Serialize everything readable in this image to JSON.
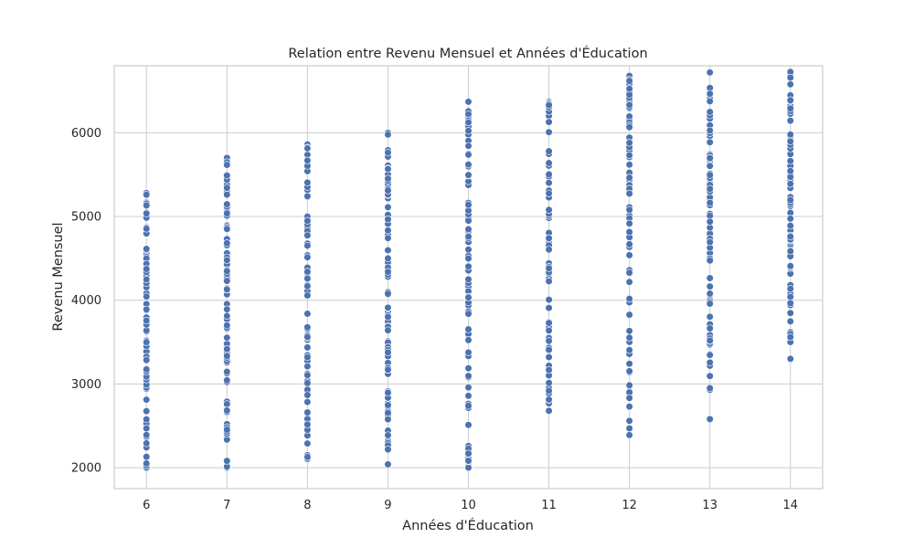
{
  "chart_data": {
    "type": "scatter",
    "title": "Relation entre Revenu Mensuel et Années d'Éducation",
    "xlabel": "Années d'Éducation",
    "ylabel": "Revenu Mensuel",
    "xlim": [
      5.6,
      14.4
    ],
    "ylim": [
      1750,
      6800
    ],
    "x_ticks": [
      6,
      7,
      8,
      9,
      10,
      11,
      12,
      13,
      14
    ],
    "y_ticks": [
      2000,
      3000,
      4000,
      5000,
      6000
    ],
    "grid": true,
    "point_color": "#4c72b0",
    "columns": [
      {
        "x": 6,
        "min": 2000,
        "max": 5280,
        "count": 80
      },
      {
        "x": 7,
        "min": 2000,
        "max": 5700,
        "count": 85
      },
      {
        "x": 8,
        "min": 2100,
        "max": 5860,
        "count": 85
      },
      {
        "x": 9,
        "min": 2040,
        "max": 6000,
        "count": 90
      },
      {
        "x": 10,
        "min": 2000,
        "max": 6370,
        "count": 90
      },
      {
        "x": 11,
        "min": 2680,
        "max": 6370,
        "count": 80
      },
      {
        "x": 12,
        "min": 2390,
        "max": 6680,
        "count": 85,
        "outliers": [
          2390,
          2470,
          2560,
          2730
        ]
      },
      {
        "x": 13,
        "min": 2580,
        "max": 6720,
        "count": 80,
        "outliers": [
          2580,
          2930,
          2950
        ]
      },
      {
        "x": 14,
        "min": 3300,
        "max": 6730,
        "count": 80,
        "outliers": [
          3300,
          3500
        ]
      }
    ]
  }
}
